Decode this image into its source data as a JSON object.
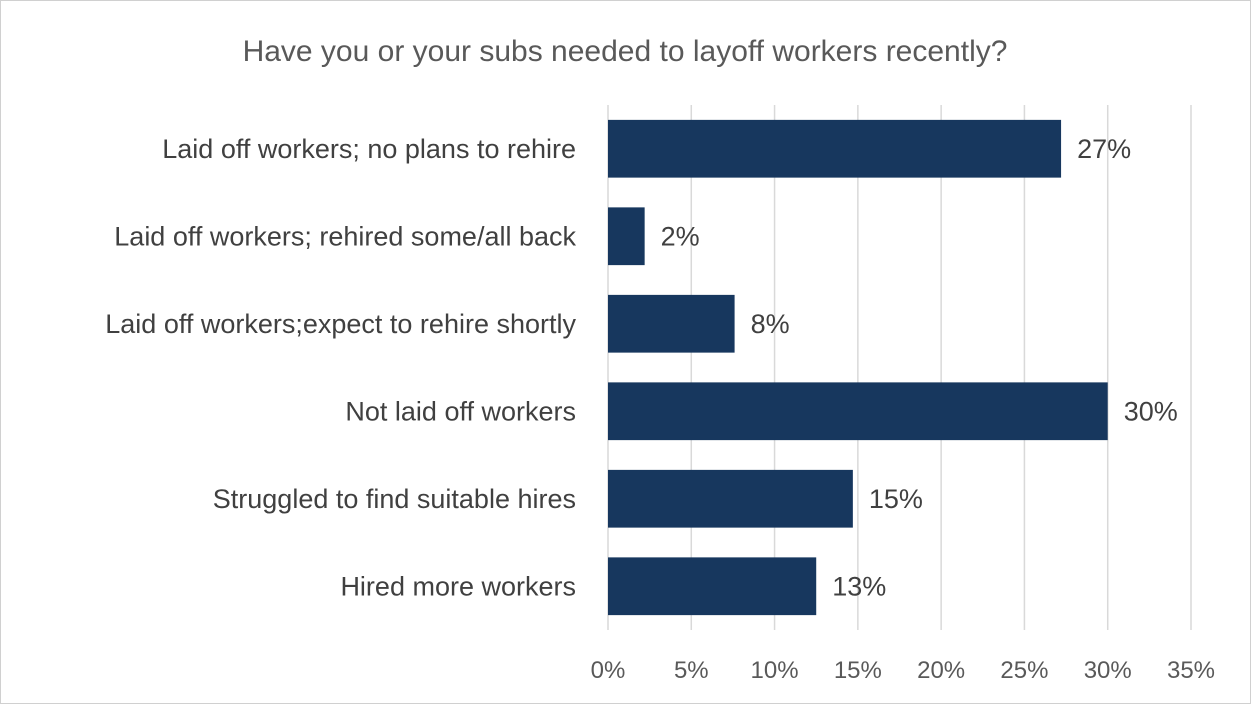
{
  "chart_data": {
    "type": "bar",
    "orientation": "horizontal",
    "title": "Have you or your subs needed to layoff workers recently?",
    "categories": [
      "Laid off workers; no plans to rehire",
      "Laid off workers; rehired some/all back",
      "Laid off workers;expect to rehire shortly",
      "Not laid off workers",
      "Struggled to find suitable hires",
      "Hired more workers"
    ],
    "values": [
      27.2,
      2.2,
      7.6,
      30.0,
      14.7,
      12.5
    ],
    "data_labels": [
      "27%",
      "2%",
      "8%",
      "30%",
      "15%",
      "13%"
    ],
    "x_ticks": [
      "0%",
      "5%",
      "10%",
      "15%",
      "20%",
      "25%",
      "30%",
      "35%"
    ],
    "xlim": [
      0,
      35
    ],
    "grid": "vertical",
    "legend": "none",
    "bar_color": "#17375e",
    "grid_color": "#d9d9d9"
  }
}
